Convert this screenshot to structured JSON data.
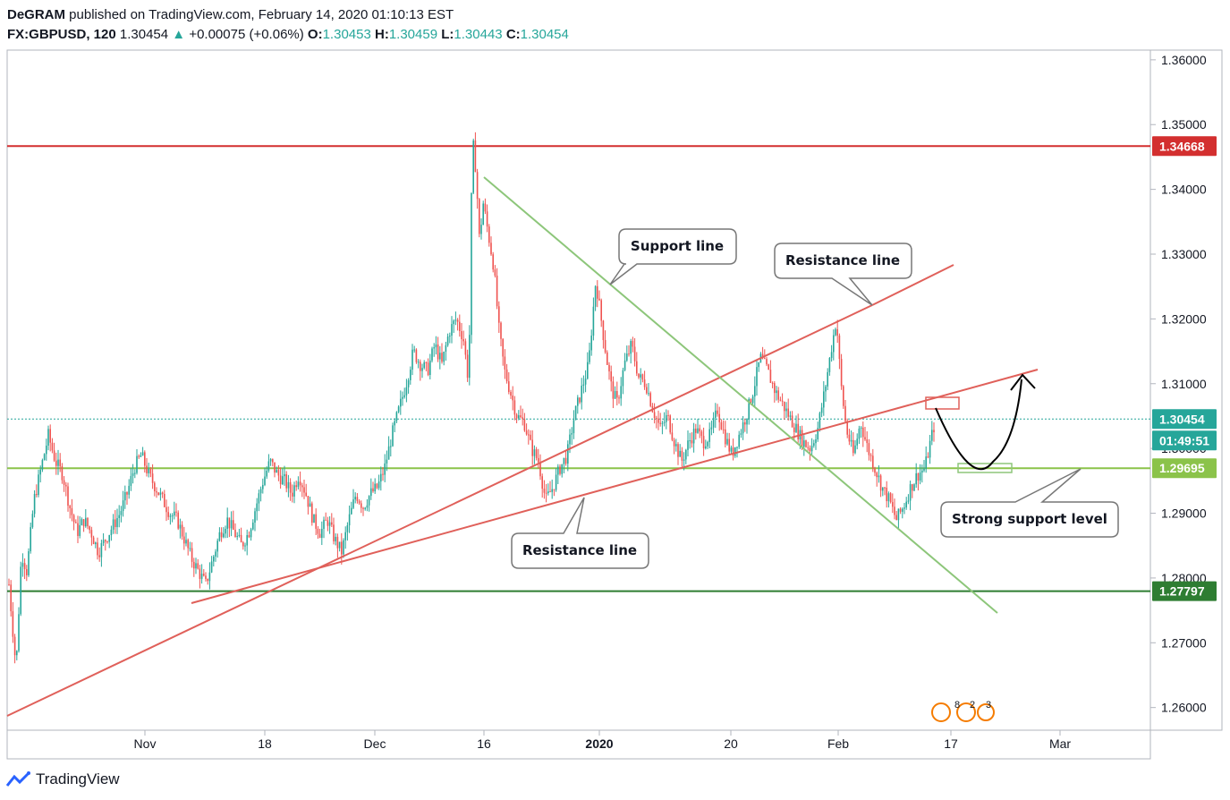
{
  "header": {
    "author": "DeGRAM",
    "published": " published on TradingView.com, February 14, 2020 01:10:13 EST",
    "symbol": "FX:GBPUSD, 120",
    "last": "1.30454",
    "change": "+0.00075 (+0.06%)",
    "o_label": "O:",
    "o_value": "1.30453",
    "h_label": "H:",
    "h_value": "1.30459",
    "l_label": "L:",
    "l_value": "1.30443",
    "c_label": "C:",
    "c_value": "1.30454"
  },
  "footer": {
    "brand": "TradingView"
  },
  "colors": {
    "up": "#26a69a",
    "down": "#ef5350",
    "resistance": "#d32f2f",
    "support_dark": "#2e7d32",
    "support_light": "#8bc34a",
    "trend_red": "#e0605a",
    "trend_green": "#8dc67a"
  },
  "chart_data": {
    "type": "candlestick",
    "symbol": "FX:GBPUSD",
    "interval": "120",
    "ylim": [
      1.2565,
      1.3615
    ],
    "y_ticks": [
      "1.36000",
      "1.35000",
      "1.34000",
      "1.33000",
      "1.32000",
      "1.31000",
      "1.30000",
      "1.29000",
      "1.28000",
      "1.27000",
      "1.26000"
    ],
    "x_ticks": [
      "Nov",
      "18",
      "Dec",
      "16",
      "2020",
      "20",
      "Feb",
      "17",
      "Mar"
    ],
    "price_labels": [
      {
        "name": "resistance-level",
        "value": "1.34668",
        "color": "#d32f2f"
      },
      {
        "name": "current-price",
        "value": "1.30454",
        "color": "#26a69a"
      },
      {
        "name": "countdown",
        "value": "01:49:51",
        "color": "#26a69a"
      },
      {
        "name": "strong-support-level",
        "value": "1.29695",
        "color": "#8bc34a"
      },
      {
        "name": "lower-support-level",
        "value": "1.27797",
        "color": "#2e7d32"
      }
    ],
    "horizontal_levels": [
      {
        "name": "resistance-level-line",
        "price": 1.34668,
        "color": "#d32f2f"
      },
      {
        "name": "strong-support-level-line",
        "price": 1.29695,
        "color": "#8bc34a"
      },
      {
        "name": "lower-support-level-line",
        "price": 1.27797,
        "color": "#2e7d32"
      },
      {
        "name": "current-price-line",
        "price": 1.30454,
        "color": "#26a69a",
        "dotted": true
      }
    ],
    "annotations": [
      {
        "name": "support-line-callout",
        "text": "Support line"
      },
      {
        "name": "resistance-line-callout-top",
        "text": "Resistance line"
      },
      {
        "name": "resistance-line-callout-bottom",
        "text": "Resistance line"
      },
      {
        "name": "strong-support-callout",
        "text": "Strong support level"
      }
    ],
    "events_badge": {
      "counts": [
        "8",
        "2",
        "3"
      ]
    },
    "price_path": [
      [
        10,
        1.279
      ],
      [
        18,
        1.266
      ],
      [
        24,
        1.284
      ],
      [
        30,
        1.281
      ],
      [
        38,
        1.292
      ],
      [
        46,
        1.297
      ],
      [
        54,
        1.302
      ],
      [
        62,
        1.298
      ],
      [
        70,
        1.296
      ],
      [
        78,
        1.291
      ],
      [
        86,
        1.287
      ],
      [
        94,
        1.289
      ],
      [
        102,
        1.287
      ],
      [
        110,
        1.284
      ],
      [
        118,
        1.286
      ],
      [
        126,
        1.288
      ],
      [
        134,
        1.29
      ],
      [
        142,
        1.293
      ],
      [
        150,
        1.297
      ],
      [
        158,
        1.299
      ],
      [
        166,
        1.296
      ],
      [
        174,
        1.294
      ],
      [
        182,
        1.292
      ],
      [
        190,
        1.29
      ],
      [
        198,
        1.289
      ],
      [
        206,
        1.286
      ],
      [
        214,
        1.283
      ],
      [
        222,
        1.281
      ],
      [
        230,
        1.279
      ],
      [
        238,
        1.283
      ],
      [
        246,
        1.287
      ],
      [
        254,
        1.289
      ],
      [
        262,
        1.287
      ],
      [
        270,
        1.285
      ],
      [
        278,
        1.287
      ],
      [
        286,
        1.291
      ],
      [
        294,
        1.295
      ],
      [
        302,
        1.298
      ],
      [
        310,
        1.296
      ],
      [
        318,
        1.295
      ],
      [
        326,
        1.293
      ],
      [
        334,
        1.296
      ],
      [
        342,
        1.293
      ],
      [
        350,
        1.289
      ],
      [
        358,
        1.287
      ],
      [
        366,
        1.289
      ],
      [
        374,
        1.286
      ],
      [
        382,
        1.284
      ],
      [
        390,
        1.289
      ],
      [
        398,
        1.293
      ],
      [
        406,
        1.291
      ],
      [
        414,
        1.293
      ],
      [
        422,
        1.294
      ],
      [
        430,
        1.297
      ],
      [
        438,
        1.302
      ],
      [
        446,
        1.306
      ],
      [
        454,
        1.31
      ],
      [
        462,
        1.315
      ],
      [
        470,
        1.313
      ],
      [
        478,
        1.312
      ],
      [
        486,
        1.316
      ],
      [
        494,
        1.313
      ],
      [
        502,
        1.318
      ],
      [
        510,
        1.32
      ],
      [
        518,
        1.317
      ],
      [
        524,
        1.31
      ],
      [
        528,
        1.348
      ],
      [
        532,
        1.343
      ],
      [
        536,
        1.332
      ],
      [
        540,
        1.338
      ],
      [
        546,
        1.333
      ],
      [
        552,
        1.328
      ],
      [
        558,
        1.318
      ],
      [
        564,
        1.312
      ],
      [
        570,
        1.309
      ],
      [
        578,
        1.305
      ],
      [
        586,
        1.304
      ],
      [
        594,
        1.3
      ],
      [
        602,
        1.298
      ],
      [
        610,
        1.292
      ],
      [
        618,
        1.294
      ],
      [
        626,
        1.297
      ],
      [
        634,
        1.299
      ],
      [
        642,
        1.305
      ],
      [
        650,
        1.309
      ],
      [
        658,
        1.313
      ],
      [
        666,
        1.326
      ],
      [
        672,
        1.32
      ],
      [
        678,
        1.314
      ],
      [
        684,
        1.309
      ],
      [
        690,
        1.307
      ],
      [
        698,
        1.313
      ],
      [
        706,
        1.316
      ],
      [
        714,
        1.311
      ],
      [
        722,
        1.31
      ],
      [
        730,
        1.306
      ],
      [
        738,
        1.303
      ],
      [
        746,
        1.305
      ],
      [
        754,
        1.301
      ],
      [
        762,
        1.298
      ],
      [
        770,
        1.301
      ],
      [
        778,
        1.303
      ],
      [
        786,
        1.301
      ],
      [
        794,
        1.302
      ],
      [
        802,
        1.306
      ],
      [
        810,
        1.302
      ],
      [
        818,
        1.299
      ],
      [
        826,
        1.302
      ],
      [
        834,
        1.305
      ],
      [
        842,
        1.309
      ],
      [
        850,
        1.314
      ],
      [
        858,
        1.312
      ],
      [
        866,
        1.309
      ],
      [
        874,
        1.307
      ],
      [
        882,
        1.305
      ],
      [
        890,
        1.303
      ],
      [
        898,
        1.301
      ],
      [
        906,
        1.3
      ],
      [
        914,
        1.303
      ],
      [
        922,
        1.309
      ],
      [
        930,
        1.316
      ],
      [
        935,
        1.32
      ],
      [
        940,
        1.31
      ],
      [
        946,
        1.303
      ],
      [
        954,
        1.299
      ],
      [
        962,
        1.304
      ],
      [
        970,
        1.3
      ],
      [
        978,
        1.297
      ],
      [
        986,
        1.294
      ],
      [
        994,
        1.292
      ],
      [
        1002,
        1.289
      ],
      [
        1010,
        1.291
      ],
      [
        1018,
        1.294
      ],
      [
        1026,
        1.296
      ],
      [
        1034,
        1.297
      ],
      [
        1040,
        1.301
      ],
      [
        1046,
        1.3045
      ]
    ]
  }
}
